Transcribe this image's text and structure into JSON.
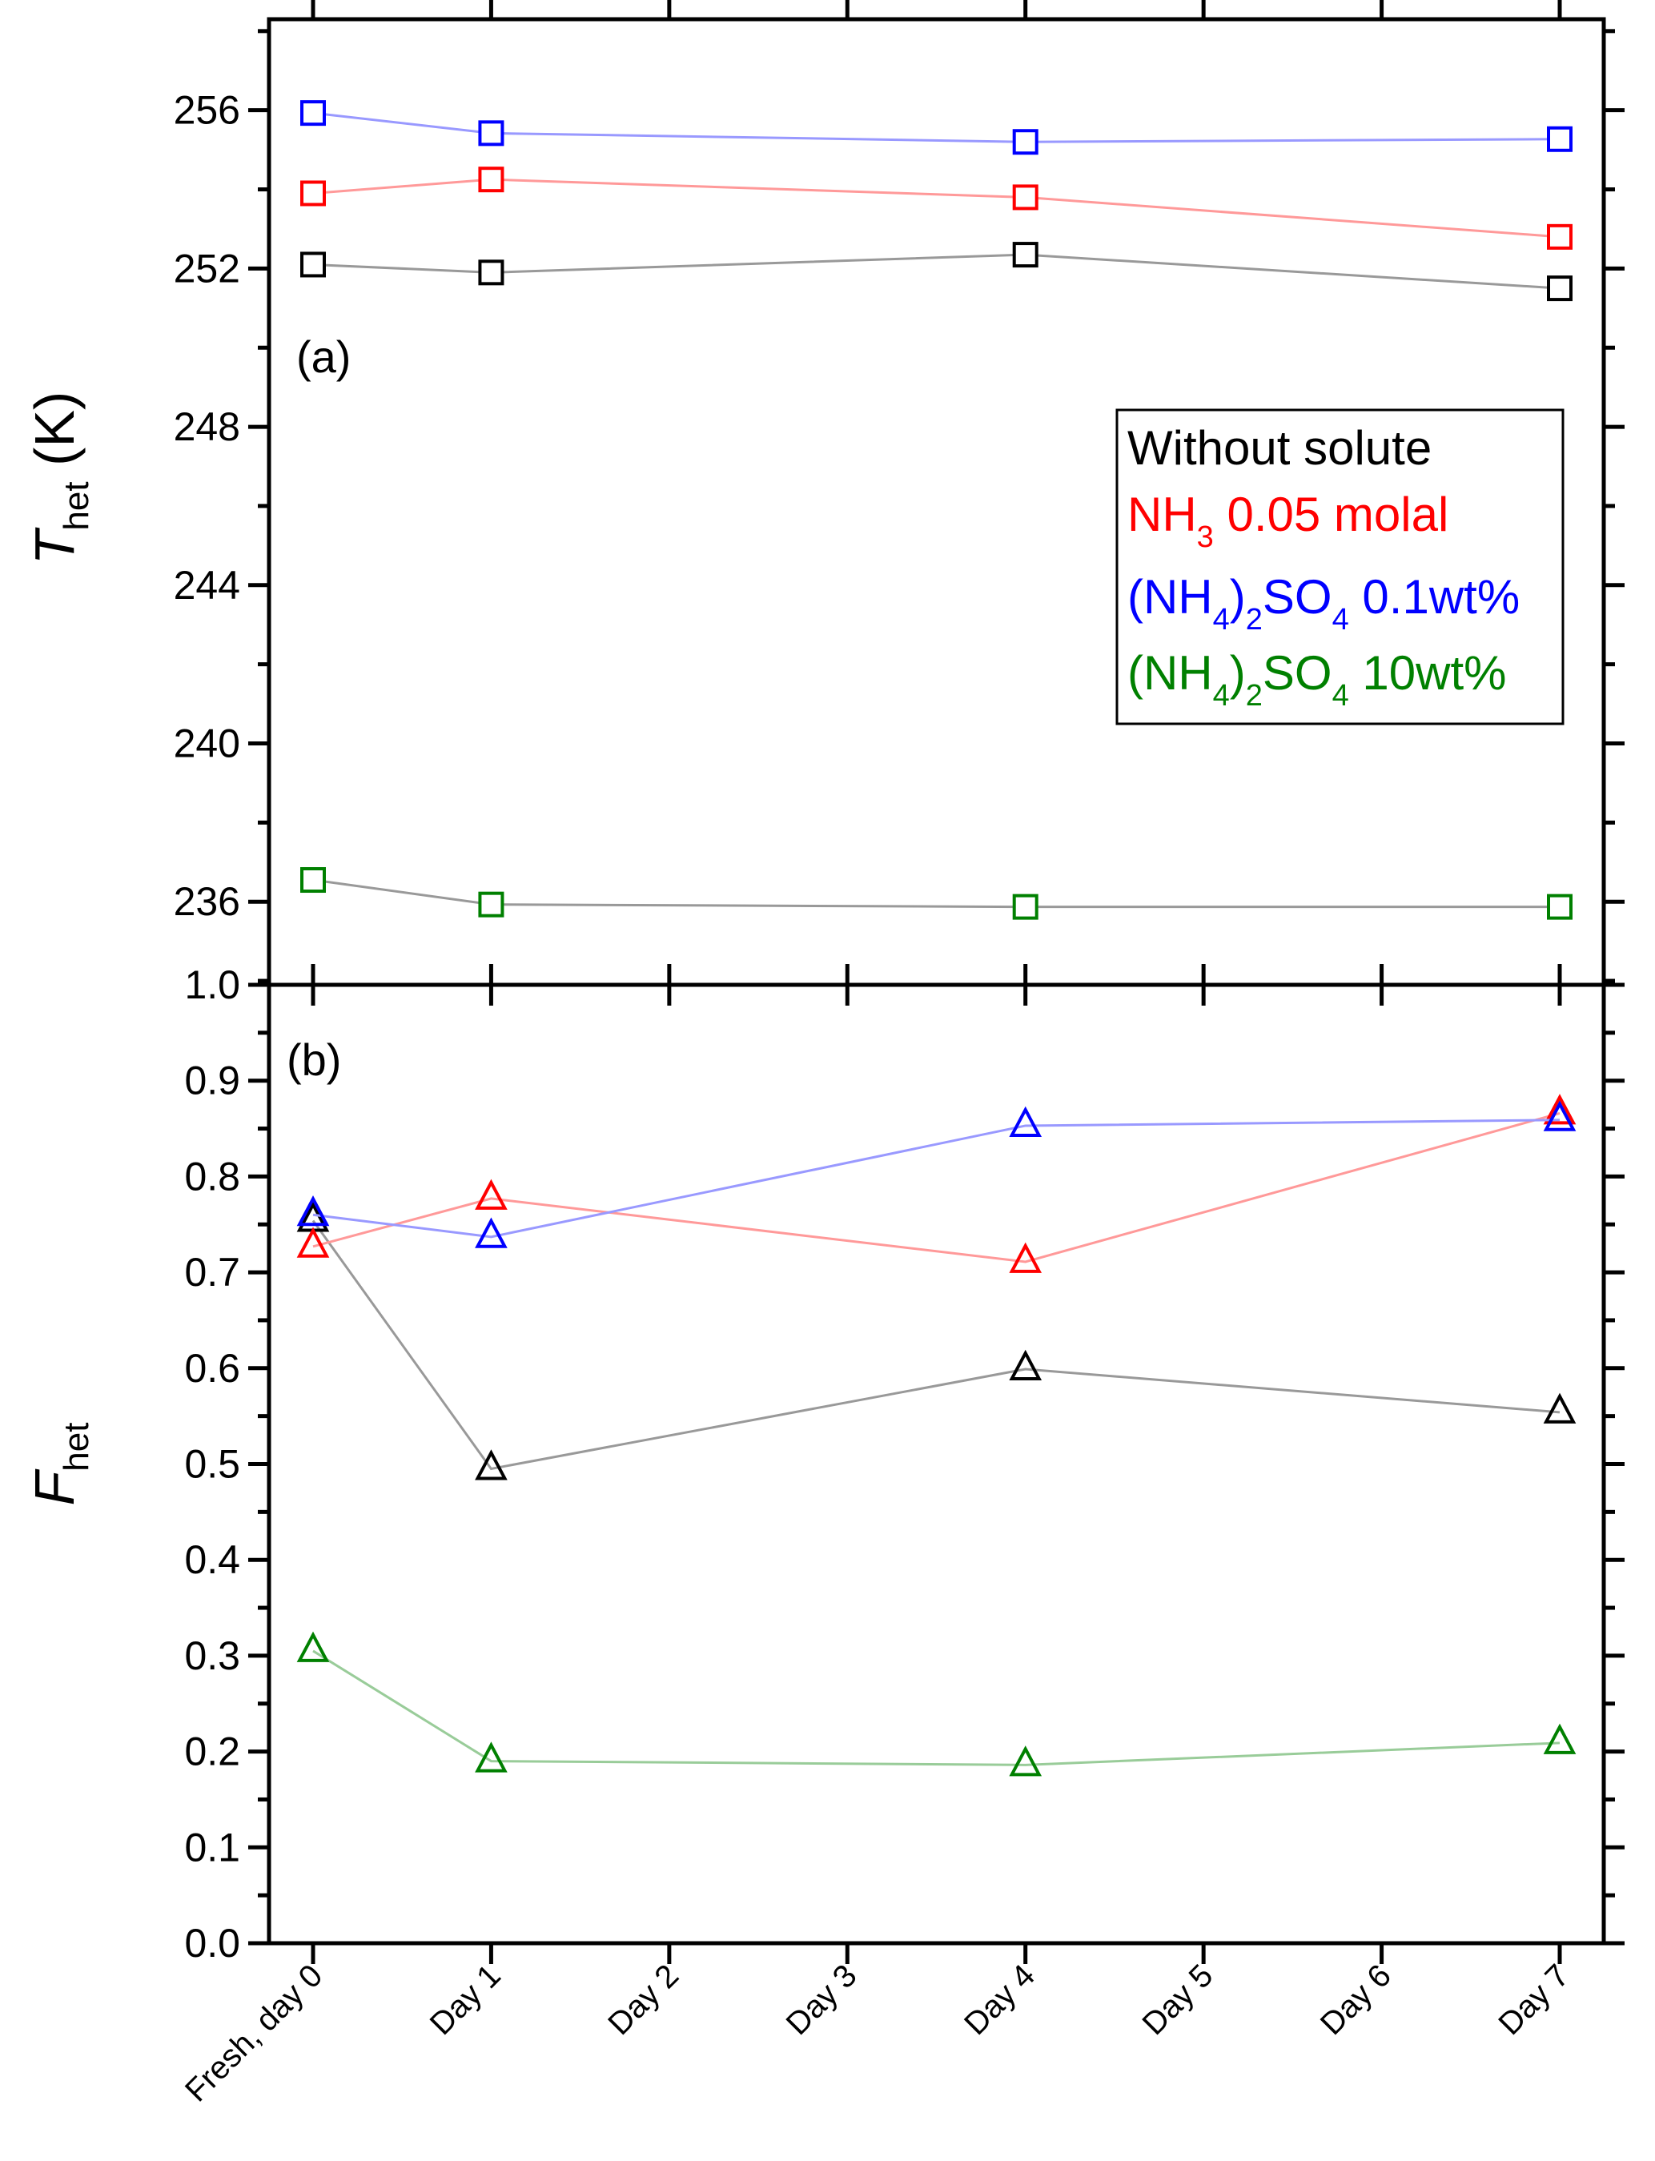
{
  "chart_data": {
    "type": "line",
    "categories": [
      "Fresh, day 0",
      "Day 1",
      "Day 2",
      "Day 3",
      "Day 4",
      "Day 5",
      "Day 6",
      "Day 7"
    ],
    "legend": {
      "placement": "right-middle of panel (a)",
      "entries": [
        {
          "series": "Without solute",
          "parts": [
            [
              "Without solute",
              ""
            ]
          ]
        },
        {
          "series": "NH3 0.05 molal",
          "parts": [
            [
              "NH",
              ""
            ],
            [
              "3",
              "sub"
            ],
            [
              " 0.05 molal",
              ""
            ]
          ]
        },
        {
          "series": "(NH4)2SO4 0.1wt%",
          "parts": [
            [
              "(NH",
              ""
            ],
            [
              "4",
              "sub"
            ],
            [
              ")",
              ""
            ],
            [
              "2",
              "sub"
            ],
            [
              "SO",
              ""
            ],
            [
              "4",
              "sub"
            ],
            [
              " 0.1wt%",
              ""
            ]
          ]
        },
        {
          "series": "(NH4)2SO4 10wt%",
          "parts": [
            [
              "(NH",
              ""
            ],
            [
              "4",
              "sub"
            ],
            [
              ")",
              ""
            ],
            [
              "2",
              "sub"
            ],
            [
              "SO",
              ""
            ],
            [
              "4",
              "sub"
            ],
            [
              " 10wt%",
              ""
            ]
          ]
        }
      ]
    },
    "panels": [
      {
        "label": "(a)",
        "ylabel": {
          "main": "T",
          "sub": "het",
          "unit": " (K)"
        },
        "ylim": [
          233.9,
          258.3
        ],
        "yticks": [
          236,
          240,
          244,
          248,
          252,
          256
        ],
        "marker": "square",
        "series": [
          {
            "name": "Without solute",
            "color": "#000000",
            "line_color": "#999999",
            "x": [
              0,
              1,
              4,
              7
            ],
            "values": [
              252.1,
              251.9,
              252.35,
              251.5
            ]
          },
          {
            "name": "NH3 0.05 molal",
            "color": "#ff0000",
            "line_color": "#ff9999",
            "x": [
              0,
              1,
              4,
              7
            ],
            "values": [
              253.9,
              254.25,
              253.8,
              252.8
            ]
          },
          {
            "name": "(NH4)2SO4 0.1wt%",
            "color": "#0000ff",
            "line_color": "#9999ff",
            "x": [
              0,
              1,
              4,
              7
            ],
            "values": [
              255.93,
              255.42,
              255.2,
              255.27
            ]
          },
          {
            "name": "(NH4)2SO4 10wt%",
            "color": "#008000",
            "line_color": "#999999",
            "x": [
              0,
              1,
              4,
              7
            ],
            "values": [
              236.55,
              235.93,
              235.87,
              235.87
            ]
          }
        ]
      },
      {
        "label": "(b)",
        "ylabel": {
          "main": "F",
          "sub": "het",
          "unit": ""
        },
        "ylim": [
          0,
          1
        ],
        "yticks": [
          "0.0",
          "0.1",
          "0.2",
          "0.3",
          "0.4",
          "0.5",
          "0.6",
          "0.7",
          "0.8",
          "0.9",
          "1.0"
        ],
        "marker": "triangle",
        "series": [
          {
            "name": "Without solute",
            "color": "#000000",
            "line_color": "#999999",
            "x": [
              0,
              1,
              4,
              7
            ],
            "values": [
              0.754,
              0.495,
              0.599,
              0.554
            ]
          },
          {
            "name": "NH3 0.05 molal",
            "color": "#ff0000",
            "line_color": "#ff9999",
            "x": [
              0,
              1,
              4,
              7
            ],
            "values": [
              0.727,
              0.777,
              0.711,
              0.866
            ]
          },
          {
            "name": "(NH4)2SO4 0.1wt%",
            "color": "#0000ff",
            "line_color": "#9999ff",
            "x": [
              0,
              1,
              4,
              7
            ],
            "values": [
              0.76,
              0.737,
              0.853,
              0.859
            ]
          },
          {
            "name": "(NH4)2SO4 10wt%",
            "color": "#008000",
            "line_color": "#99cc99",
            "x": [
              0,
              1,
              4,
              7
            ],
            "values": [
              0.305,
              0.19,
              0.186,
              0.209
            ]
          }
        ]
      }
    ]
  }
}
